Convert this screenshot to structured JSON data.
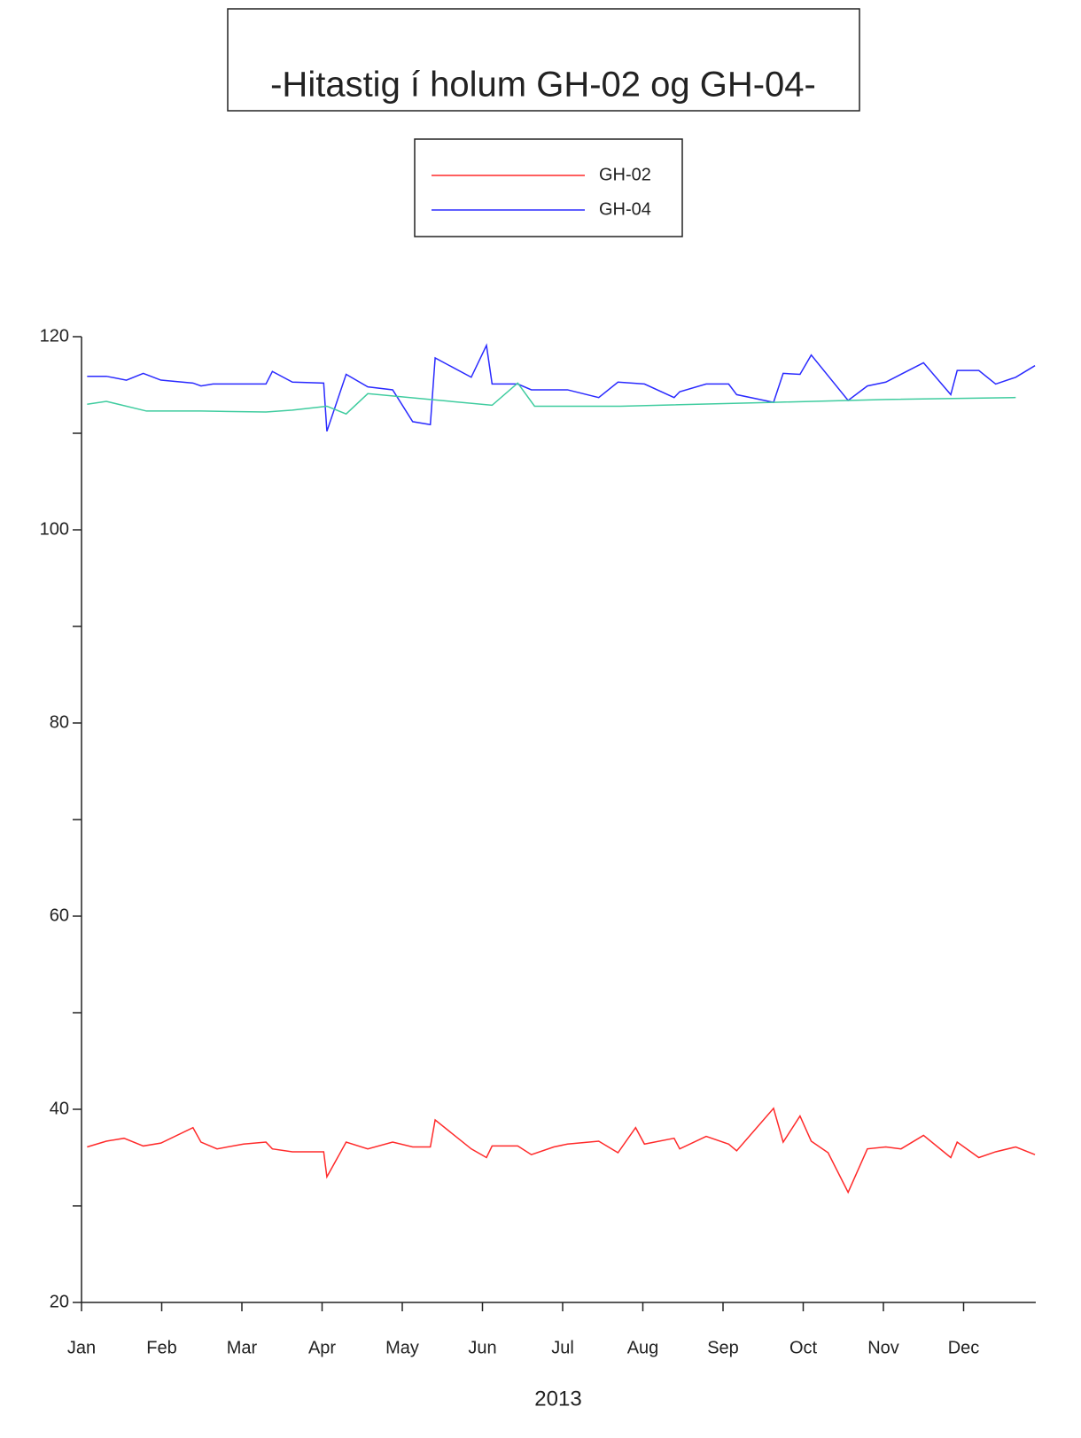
{
  "chart_data": {
    "type": "line",
    "title": "-Hitastig í holum GH-02 og GH-04-",
    "xlabel": "2013",
    "xlim": [
      0,
      11.9
    ],
    "ylim": [
      20,
      120
    ],
    "xticks": [
      {
        "value": 0,
        "label": "Jan"
      },
      {
        "value": 1,
        "label": "Feb"
      },
      {
        "value": 2,
        "label": "Mar"
      },
      {
        "value": 3,
        "label": "Apr"
      },
      {
        "value": 4,
        "label": "May"
      },
      {
        "value": 5,
        "label": "Jun"
      },
      {
        "value": 6,
        "label": "Jul"
      },
      {
        "value": 7,
        "label": "Aug"
      },
      {
        "value": 8,
        "label": "Sep"
      },
      {
        "value": 9,
        "label": "Oct"
      },
      {
        "value": 10,
        "label": "Nov"
      },
      {
        "value": 11,
        "label": "Dec"
      }
    ],
    "yticks": [
      20,
      40,
      60,
      80,
      100,
      120
    ],
    "yminor_ticks": [
      30,
      50,
      70,
      90,
      110
    ],
    "series": [
      {
        "name": "GH-02",
        "color": "#ff2a2a",
        "x": [
          0.07,
          0.31,
          0.53,
          0.77,
          0.99,
          1.39,
          1.49,
          1.69,
          2.02,
          2.3,
          2.38,
          2.63,
          3.02,
          3.06,
          3.3,
          3.57,
          3.88,
          4.13,
          4.35,
          4.41,
          4.86,
          5.05,
          5.12,
          5.44,
          5.61,
          5.89,
          6.06,
          6.45,
          6.69,
          6.91,
          7.02,
          7.39,
          7.46,
          7.79,
          8.07,
          8.17,
          8.63,
          8.75,
          8.96,
          9.1,
          9.31,
          9.56,
          9.8,
          10.03,
          10.22,
          10.5,
          10.84,
          10.92,
          11.19,
          11.4,
          11.65,
          11.89
        ],
        "values": [
          36.1,
          36.7,
          37.0,
          36.2,
          36.5,
          38.1,
          36.6,
          35.9,
          36.4,
          36.6,
          35.9,
          35.6,
          35.6,
          33.0,
          36.6,
          35.9,
          36.6,
          36.1,
          36.1,
          38.9,
          35.9,
          35.0,
          36.2,
          36.2,
          35.3,
          36.1,
          36.4,
          36.7,
          35.5,
          38.1,
          36.4,
          37.0,
          35.9,
          37.2,
          36.4,
          35.7,
          40.1,
          36.6,
          39.3,
          36.7,
          35.5,
          31.4,
          35.9,
          36.1,
          35.9,
          37.3,
          35.0,
          36.6,
          35.0,
          35.6,
          36.1,
          35.3
        ]
      },
      {
        "name": "GH-04",
        "color": "#2a2aff",
        "x": [
          0.07,
          0.31,
          0.56,
          0.77,
          0.99,
          1.39,
          1.49,
          1.64,
          2.3,
          2.38,
          2.63,
          3.02,
          3.06,
          3.3,
          3.57,
          3.88,
          4.13,
          4.35,
          4.41,
          4.86,
          5.05,
          5.12,
          5.44,
          5.61,
          6.06,
          6.45,
          6.69,
          7.02,
          7.39,
          7.46,
          7.79,
          8.07,
          8.17,
          8.63,
          8.75,
          8.96,
          9.1,
          9.56,
          9.8,
          10.03,
          10.5,
          10.84,
          10.92,
          11.19,
          11.4,
          11.65,
          11.89
        ],
        "values": [
          115.9,
          115.9,
          115.5,
          116.2,
          115.5,
          115.2,
          114.9,
          115.1,
          115.1,
          116.4,
          115.3,
          115.2,
          110.2,
          116.1,
          114.8,
          114.5,
          111.2,
          110.9,
          117.8,
          115.8,
          119.1,
          115.1,
          115.1,
          114.5,
          114.5,
          113.7,
          115.3,
          115.1,
          113.7,
          114.3,
          115.1,
          115.1,
          114.0,
          113.2,
          116.2,
          116.1,
          118.1,
          113.4,
          114.9,
          115.3,
          117.3,
          114.0,
          116.5,
          116.5,
          115.1,
          115.8,
          117.0
        ]
      },
      {
        "color": "#3fcc9f",
        "x": [
          0.07,
          0.31,
          0.81,
          1.49,
          2.3,
          2.63,
          3.06,
          3.3,
          3.57,
          4.35,
          5.12,
          5.44,
          5.65,
          6.06,
          6.72,
          8.63,
          10.03,
          11.65
        ],
        "values": [
          113.0,
          113.3,
          112.3,
          112.3,
          112.2,
          112.4,
          112.8,
          112.0,
          114.1,
          113.5,
          112.9,
          115.2,
          112.8,
          112.8,
          112.8,
          113.2,
          113.5,
          113.7
        ]
      }
    ]
  }
}
